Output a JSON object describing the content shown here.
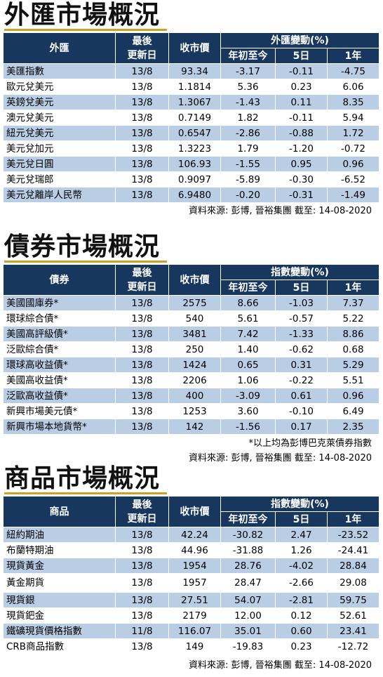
{
  "fx": {
    "title": "外匯市場概況",
    "headers": {
      "name": "外匯",
      "updated": "最後\n更新日",
      "close": "收市價",
      "change": "外匯變動(%)",
      "ytd": "年初至今",
      "d5": "5日",
      "y1": "1年"
    },
    "rows": [
      [
        "美匯指數",
        "13/8",
        "93.34",
        "-3.17",
        "-0.11",
        "-4.75"
      ],
      [
        "歐元兌美元",
        "13/8",
        "1.1814",
        "5.36",
        "0.23",
        "6.06"
      ],
      [
        "英鎊兌美元",
        "13/8",
        "1.3067",
        "-1.43",
        "0.11",
        "8.35"
      ],
      [
        "澳元兌美元",
        "13/8",
        "0.7149",
        "1.82",
        "-0.11",
        "5.94"
      ],
      [
        "紐元兌美元",
        "13/8",
        "0.6547",
        "-2.86",
        "-0.88",
        "1.72"
      ],
      [
        "美元兌加元",
        "13/8",
        "1.3223",
        "1.79",
        "-1.20",
        "-0.72"
      ],
      [
        "美元兌日圓",
        "13/8",
        "106.93",
        "-1.55",
        "0.95",
        "0.96"
      ],
      [
        "美元兌瑞郎",
        "13/8",
        "0.9097",
        "-5.89",
        "-0.30",
        "-6.52"
      ],
      [
        "美元兌離岸人民幣",
        "13/8",
        "6.9480",
        "-0.20",
        "-0.31",
        "-1.49"
      ]
    ],
    "source": "資料來源: 彭博, 晉裕集團 截至: 14-08-2020"
  },
  "bonds": {
    "title": "債券市場概況",
    "headers": {
      "name": "債券",
      "updated": "最後\n更新日",
      "close": "收市價",
      "change": "指數變動(%)",
      "ytd": "年初至今",
      "d5": "5日",
      "y1": "1年"
    },
    "rows": [
      [
        "美國國庫券*",
        "13/8",
        "2575",
        "8.66",
        "-1.03",
        "7.37"
      ],
      [
        "環球綜合債*",
        "13/8",
        "540",
        "5.61",
        "-0.57",
        "5.22"
      ],
      [
        "美國高評級債*",
        "13/8",
        "3481",
        "7.42",
        "-1.33",
        "8.86"
      ],
      [
        "泛歐綜合債*",
        "13/8",
        "250",
        "1.40",
        "-0.62",
        "0.68"
      ],
      [
        "環球高收益債*",
        "13/8",
        "1424",
        "0.65",
        "0.31",
        "5.29"
      ],
      [
        "美國高收益債*",
        "13/8",
        "2206",
        "1.06",
        "-0.22",
        "5.51"
      ],
      [
        "泛歐高收益債*",
        "13/8",
        "400",
        "-3.09",
        "0.61",
        "0.96"
      ],
      [
        "新興市場美元債*",
        "13/8",
        "1253",
        "3.60",
        "-0.10",
        "6.49"
      ],
      [
        "新興市場本地貨幣*",
        "13/8",
        "142",
        "-1.56",
        "0.17",
        "2.35"
      ]
    ],
    "note": "*以上均為彭博巴克萊債券指數",
    "source": "資料來源: 彭博, 晉裕集團 截至: 14-08-2020"
  },
  "commodities": {
    "title": "商品市場概況",
    "headers": {
      "name": "商品",
      "updated": "最後\n更新日",
      "close": "收市價",
      "change": "指數變動(%)",
      "ytd": "年初至今",
      "d5": "5日",
      "y1": "1年"
    },
    "rows": [
      [
        "紐約期油",
        "13/8",
        "42.24",
        "-30.82",
        "2.47",
        "-23.52"
      ],
      [
        "布蘭特期油",
        "13/8",
        "44.96",
        "-31.88",
        "1.26",
        "-24.41"
      ],
      [
        "現貨黃金",
        "13/8",
        "1954",
        "28.76",
        "-4.02",
        "28.84"
      ],
      [
        "黃金期貨",
        "13/8",
        "1957",
        "28.47",
        "-2.66",
        "29.08"
      ],
      [
        "現貨銀",
        "13/8",
        "27.51",
        "54.07",
        "-2.81",
        "59.75"
      ],
      [
        "現貨鈀金",
        "13/8",
        "2179",
        "12.00",
        "0.12",
        "52.61"
      ],
      [
        "鐵礦現貨價格指數",
        "11/8",
        "116.07",
        "35.01",
        "0.60",
        "23.41"
      ],
      [
        "CRB商品指數",
        "13/8",
        "149",
        "-19.83",
        "0.23",
        "-12.72"
      ]
    ],
    "source": "資料來源: 彭博, 晉裕集團 截至: 14-08-2020"
  }
}
